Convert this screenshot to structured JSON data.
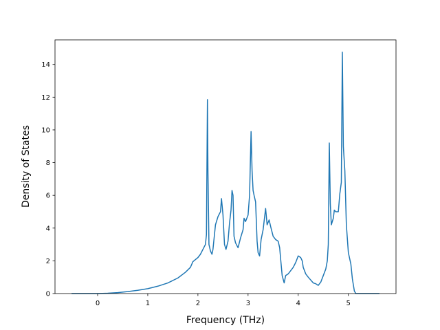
{
  "chart_data": {
    "type": "line",
    "title": "",
    "xlabel": "Frequency (THz)",
    "ylabel": "Density of States",
    "xlim": [
      -0.85,
      5.95
    ],
    "ylim": [
      0,
      15.5
    ],
    "x_ticks": [
      "0",
      "1",
      "2",
      "3",
      "4",
      "5"
    ],
    "y_ticks": [
      "0",
      "2",
      "4",
      "6",
      "8",
      "10",
      "12",
      "14"
    ],
    "grid": false,
    "legend": "none",
    "line_color": "#1f77b4",
    "series": [
      {
        "x": [
          -0.52,
          -0.2,
          0.0,
          0.2,
          0.4,
          0.6,
          0.8,
          1.0,
          1.2,
          1.4,
          1.6,
          1.75,
          1.85,
          1.9,
          2.0,
          2.05,
          2.1,
          2.15,
          2.17,
          2.19,
          2.2,
          2.22,
          2.25,
          2.28,
          2.3,
          2.35,
          2.4,
          2.45,
          2.47,
          2.5,
          2.53,
          2.56,
          2.6,
          2.63,
          2.66,
          2.68,
          2.7,
          2.72,
          2.75,
          2.8,
          2.85,
          2.9,
          2.92,
          2.95,
          3.0,
          3.03,
          3.06,
          3.08,
          3.1,
          3.12,
          3.15,
          3.18,
          3.2,
          3.23,
          3.26,
          3.3,
          3.35,
          3.38,
          3.42,
          3.45,
          3.5,
          3.55,
          3.6,
          3.63,
          3.65,
          3.68,
          3.72,
          3.75,
          3.8,
          3.9,
          3.95,
          4.0,
          4.05,
          4.08,
          4.1,
          4.15,
          4.2,
          4.3,
          4.35,
          4.4,
          4.45,
          4.5,
          4.55,
          4.58,
          4.6,
          4.62,
          4.64,
          4.66,
          4.7,
          4.72,
          4.75,
          4.8,
          4.83,
          4.86,
          4.88,
          4.9,
          4.93,
          4.96,
          5.0,
          5.05,
          5.08,
          5.12,
          5.15,
          5.2,
          5.4,
          5.62
        ],
        "values": [
          0.0,
          0.0,
          0.0,
          0.02,
          0.06,
          0.12,
          0.2,
          0.3,
          0.45,
          0.65,
          0.95,
          1.3,
          1.6,
          1.95,
          2.2,
          2.4,
          2.7,
          3.0,
          3.6,
          11.85,
          7.5,
          3.0,
          2.6,
          2.4,
          2.7,
          4.2,
          4.7,
          5.0,
          5.8,
          4.8,
          3.0,
          2.7,
          3.2,
          4.3,
          5.1,
          6.3,
          6.0,
          3.5,
          3.1,
          2.8,
          3.4,
          3.9,
          4.6,
          4.4,
          4.8,
          6.0,
          9.9,
          7.5,
          6.3,
          6.0,
          5.6,
          3.2,
          2.5,
          2.3,
          3.3,
          3.9,
          5.2,
          4.2,
          4.5,
          4.1,
          3.5,
          3.3,
          3.2,
          2.8,
          2.1,
          1.1,
          0.65,
          1.1,
          1.2,
          1.6,
          1.9,
          2.3,
          2.2,
          2.0,
          1.6,
          1.2,
          1.0,
          0.65,
          0.6,
          0.5,
          0.7,
          1.1,
          1.5,
          2.0,
          3.0,
          9.2,
          5.5,
          4.2,
          4.6,
          5.1,
          5.0,
          5.0,
          6.1,
          6.8,
          14.75,
          9.0,
          7.5,
          4.2,
          2.5,
          1.8,
          0.9,
          0.15,
          0.0,
          0.0,
          0.0,
          0.0
        ]
      }
    ]
  }
}
